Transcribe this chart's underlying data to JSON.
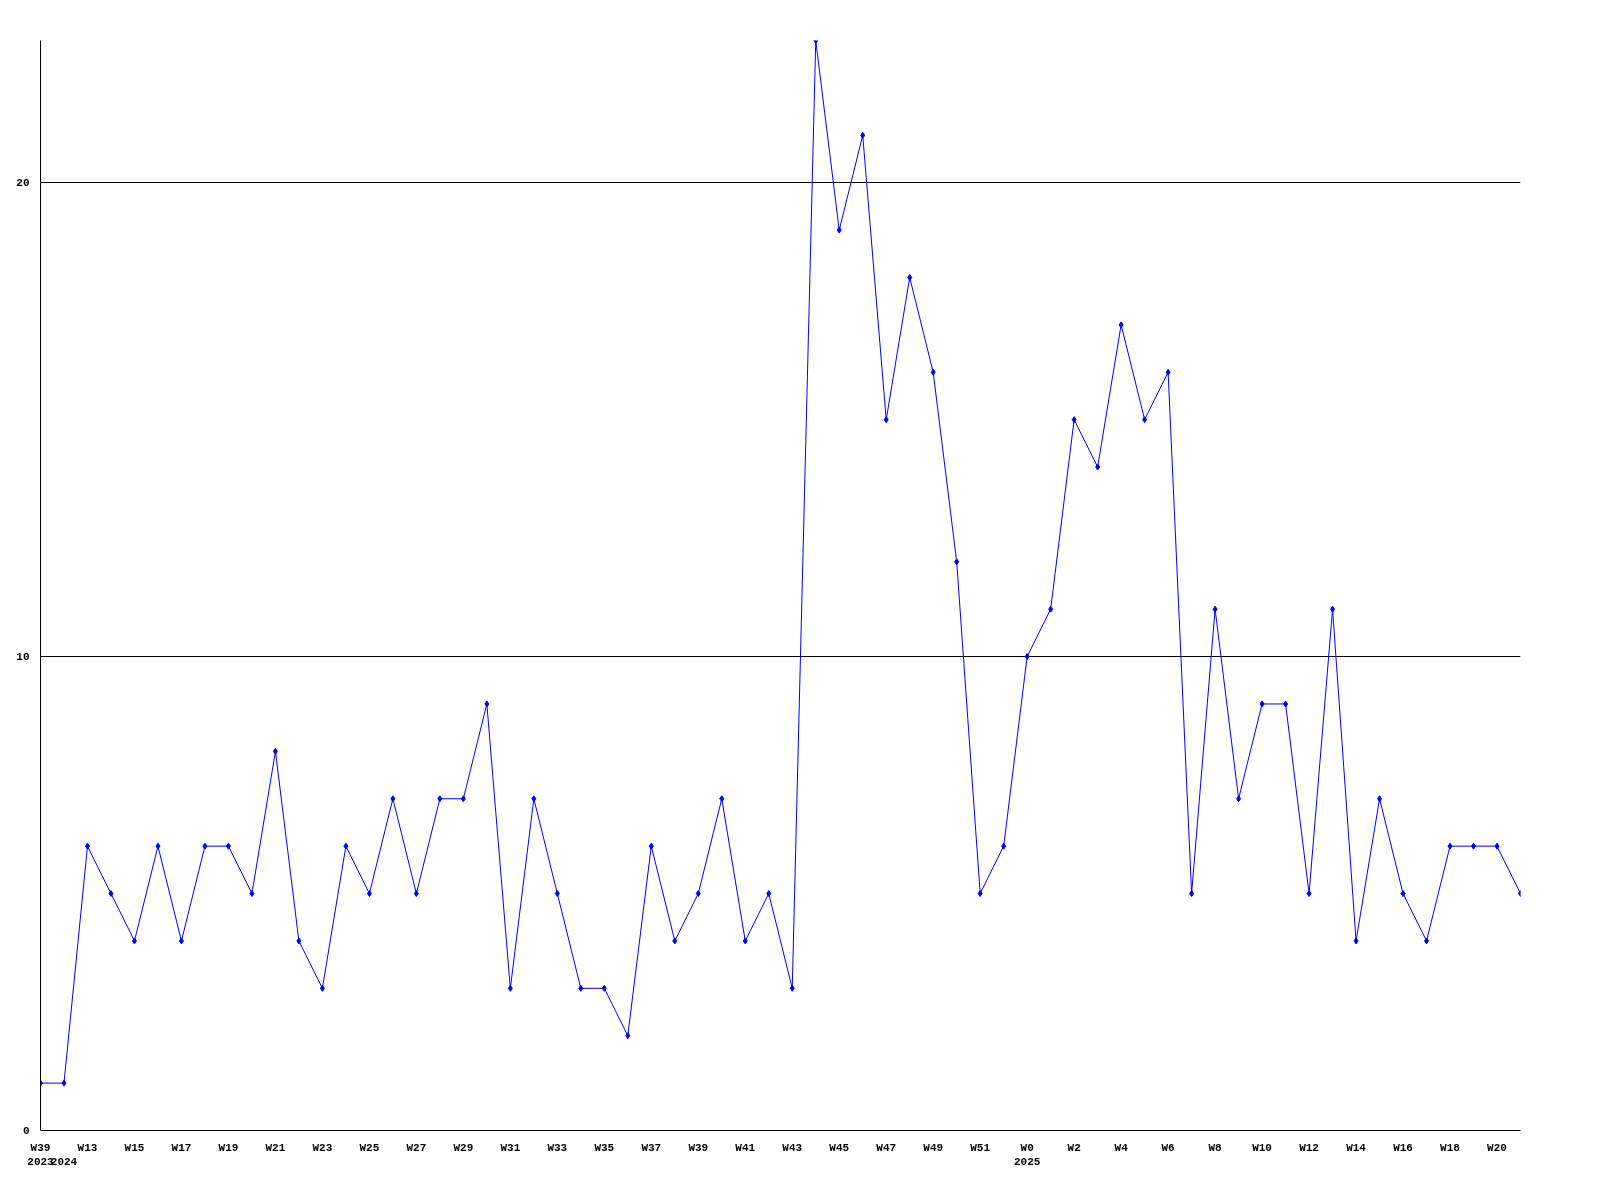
{
  "chart_data": {
    "type": "line",
    "categories": [
      "W39\n2023",
      "\n2024",
      "W13",
      null,
      "W15",
      null,
      "W17",
      null,
      "W19",
      null,
      "W21",
      null,
      "W23",
      null,
      "W25",
      null,
      "W27",
      null,
      "W29",
      null,
      "W31",
      null,
      "W33",
      null,
      "W35",
      null,
      "W37",
      null,
      "W39",
      null,
      "W41",
      null,
      "W43",
      null,
      "W45",
      null,
      "W47",
      null,
      "W49",
      null,
      "W51",
      null,
      "W0\n2025",
      null,
      "W2",
      null,
      "W4",
      null,
      "W6",
      null,
      "W8",
      null,
      "W10",
      null,
      "W12",
      null,
      "W14",
      null,
      "W16",
      null,
      "W18",
      null,
      "W20",
      null
    ],
    "series": [
      {
        "color": "#0000ff",
        "values": [
          1,
          1,
          6,
          5,
          4,
          6,
          4,
          6,
          6,
          5,
          8,
          4,
          3,
          6,
          5,
          7,
          5,
          7,
          7,
          9,
          3,
          7,
          5,
          3,
          3,
          2,
          6,
          4,
          5,
          7,
          4,
          5,
          3,
          23,
          19,
          21,
          15,
          18,
          16,
          12,
          5,
          6,
          10,
          11,
          15,
          14,
          17,
          15,
          16,
          5,
          11,
          7,
          9,
          9,
          5,
          11,
          4,
          7,
          5,
          4,
          6,
          6,
          6,
          5
        ]
      }
    ],
    "ylim": [
      0,
      23
    ],
    "yticks": [
      0,
      10,
      20
    ],
    "grid": "y",
    "marker": "diamond",
    "line_style": "solid"
  }
}
